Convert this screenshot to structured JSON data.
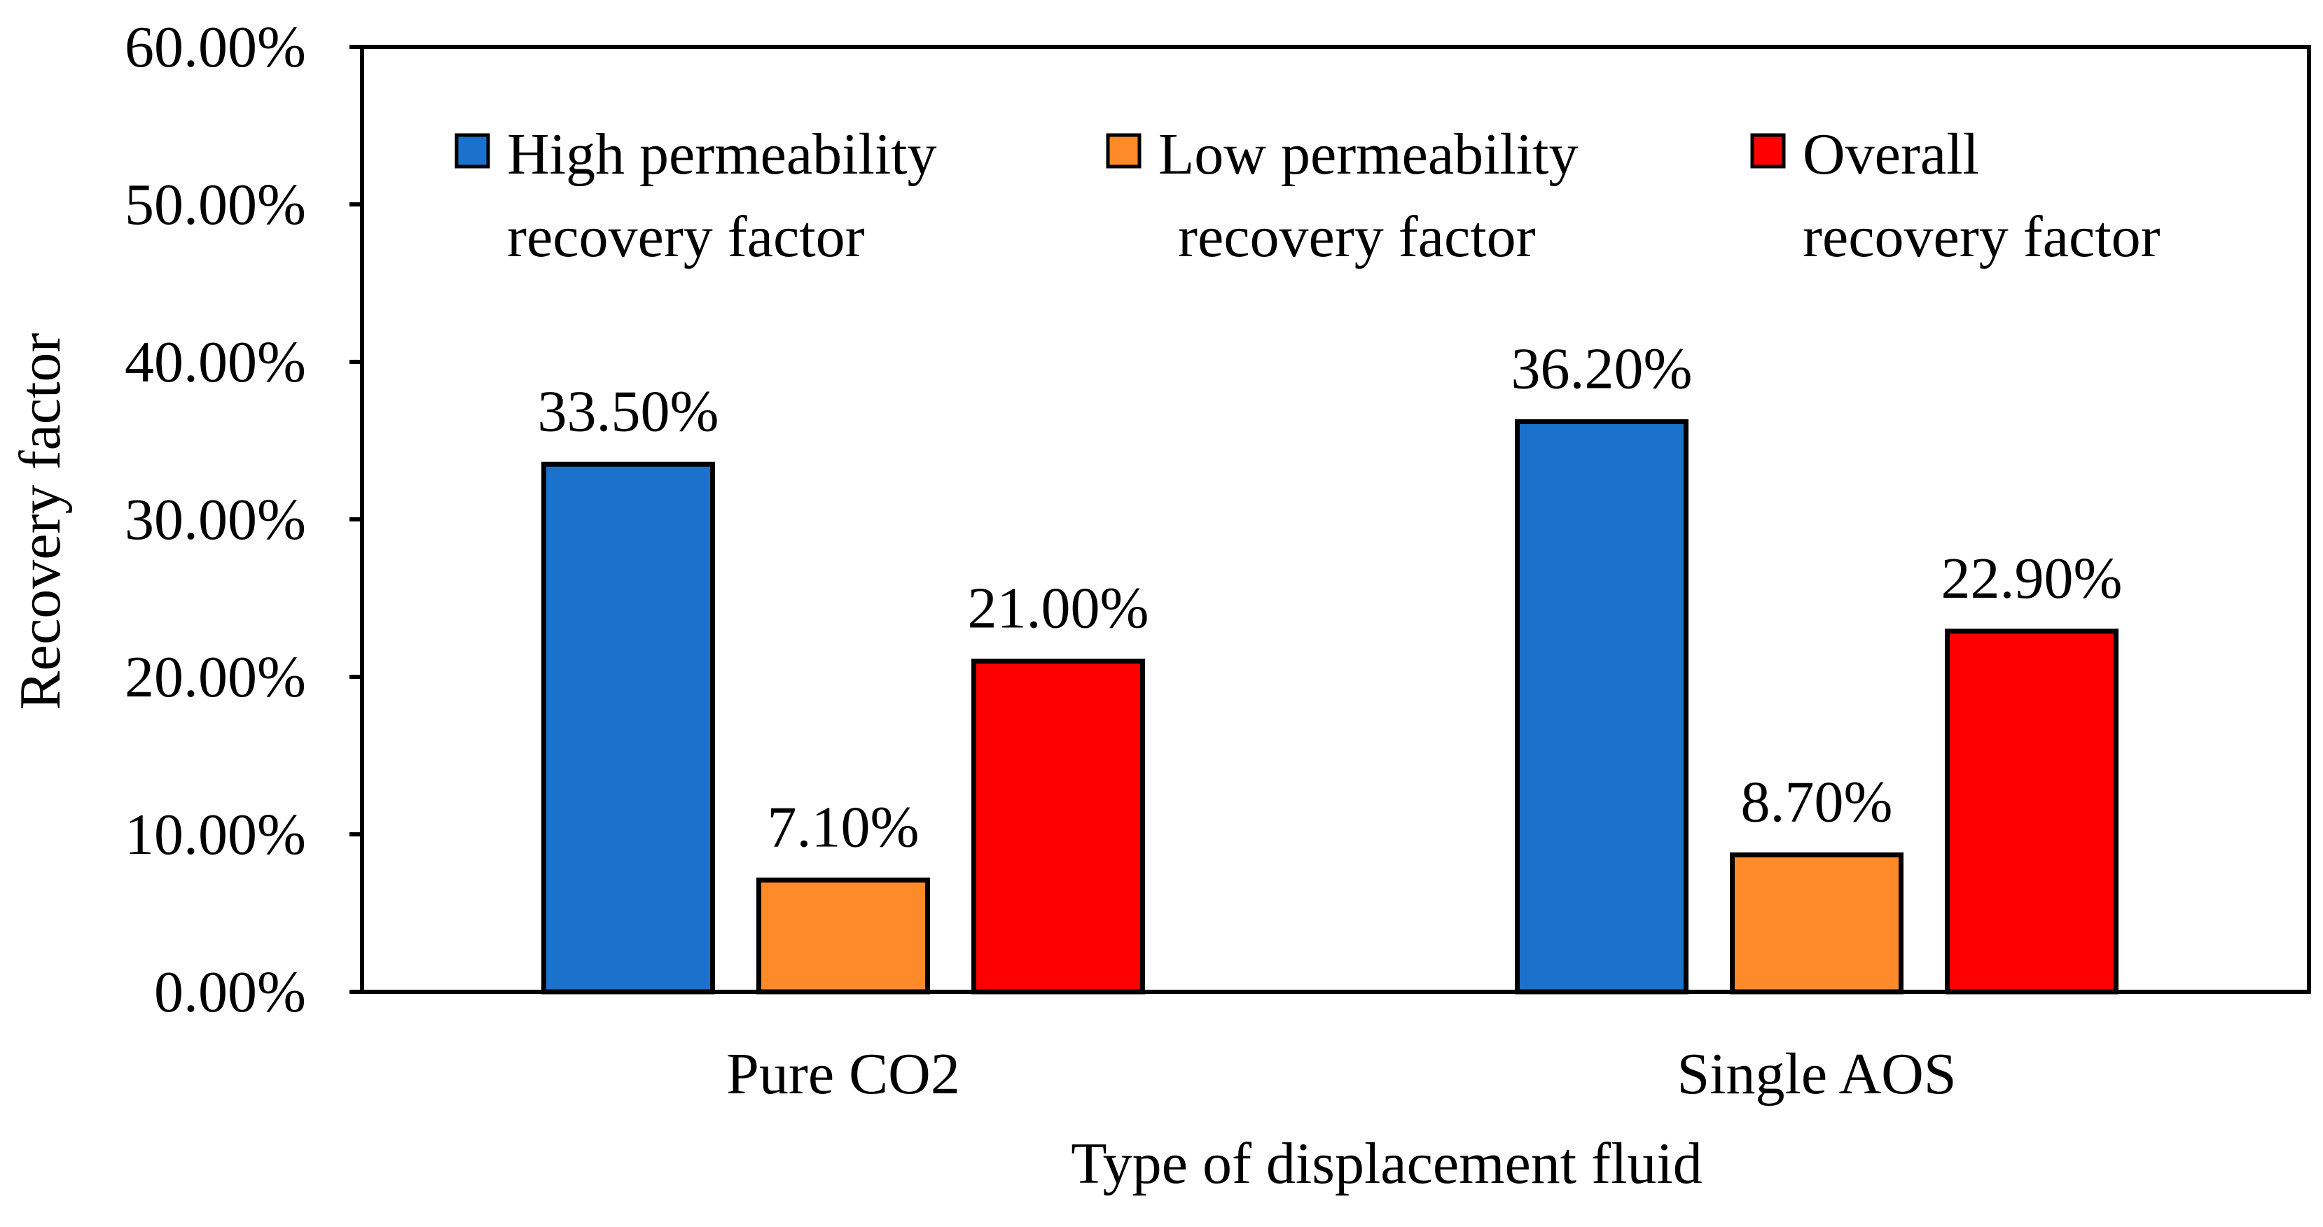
{
  "chart_data": {
    "type": "bar",
    "categories": [
      "Pure CO2",
      "Single AOS"
    ],
    "series": [
      {
        "name": "High permeability recovery factor",
        "name_lines": [
          "High permeability",
          "recovery factor"
        ],
        "color": "#1a72cc",
        "values": [
          33.5,
          36.2
        ],
        "labels": [
          "33.50%",
          "36.20%"
        ]
      },
      {
        "name": "Low permeability recovery factor",
        "name_lines": [
          "Low permeability",
          "recovery factor"
        ],
        "color": "#ff8a2a",
        "values": [
          7.1,
          8.7
        ],
        "labels": [
          "7.10%",
          "8.70%"
        ]
      },
      {
        "name": "Overall recovery factor",
        "name_lines": [
          "Overall",
          "recovery factor"
        ],
        "color": "#ff0000",
        "values": [
          21.0,
          22.9
        ],
        "labels": [
          "21.00%",
          "22.90%"
        ]
      }
    ],
    "xlabel": "Type of displacement fluid",
    "ylabel": "Recovery factor",
    "ylim": [
      0,
      60
    ],
    "yticks": [
      0,
      10,
      20,
      30,
      40,
      50,
      60
    ],
    "ytick_labels": [
      "0.00%",
      "10.00%",
      "20.00%",
      "30.00%",
      "40.00%",
      "50.00%",
      "60.00%"
    ],
    "grid": false,
    "legend": "top"
  }
}
